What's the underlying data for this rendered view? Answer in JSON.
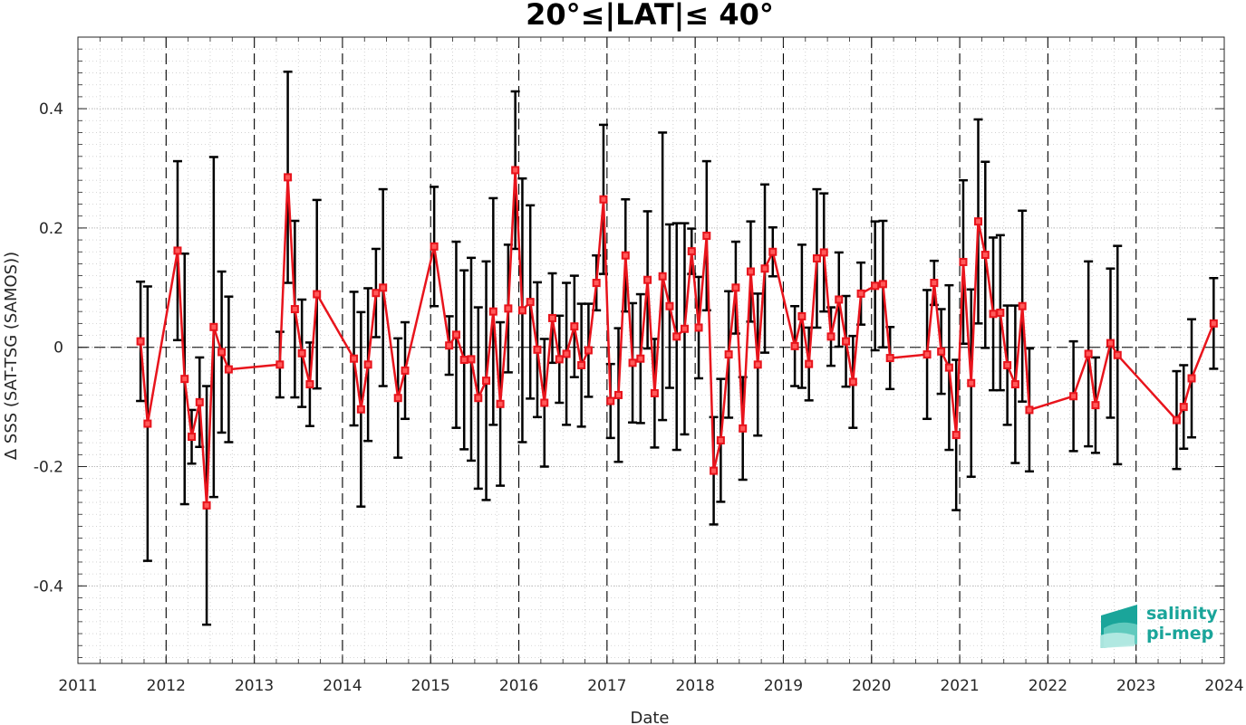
{
  "chart_data": {
    "type": "line",
    "title": "20°≤|LAT|≤ 40°",
    "xlabel": "Date",
    "ylabel": "Δ SSS (SAT-TSG (SAMOS))",
    "xlim": [
      2011,
      2024
    ],
    "ylim": [
      -0.53,
      0.52
    ],
    "x_ticks": [
      "2011",
      "2012",
      "2013",
      "2014",
      "2015",
      "2016",
      "2017",
      "2018",
      "2019",
      "2020",
      "2021",
      "2022",
      "2023",
      "2024"
    ],
    "y_ticks": [
      {
        "value": -0.4,
        "label": "-0.4"
      },
      {
        "value": -0.2,
        "label": "-0.2"
      },
      {
        "value": 0,
        "label": "0"
      },
      {
        "value": 0.2,
        "label": "0.2"
      },
      {
        "value": 0.4,
        "label": "0.4"
      }
    ],
    "grid": true,
    "year_separator_lines": true,
    "zero_reference_line": true,
    "series": [
      {
        "color": "#e8141c",
        "errorbar_color": "#000000",
        "points": [
          {
            "x": 2011.71,
            "y": 0.01,
            "err": 0.1
          },
          {
            "x": 2011.79,
            "y": -0.128,
            "err": 0.23
          },
          {
            "x": 2012.13,
            "y": 0.162,
            "err": 0.15
          },
          {
            "x": 2012.21,
            "y": -0.053,
            "err": 0.21
          },
          {
            "x": 2012.29,
            "y": -0.15,
            "err": 0.045
          },
          {
            "x": 2012.38,
            "y": -0.092,
            "err": 0.075
          },
          {
            "x": 2012.46,
            "y": -0.265,
            "err": 0.2
          },
          {
            "x": 2012.54,
            "y": 0.034,
            "err": 0.285
          },
          {
            "x": 2012.63,
            "y": -0.008,
            "err": 0.135
          },
          {
            "x": 2012.71,
            "y": -0.037,
            "err": 0.122
          },
          {
            "x": 2013.29,
            "y": -0.029,
            "err": 0.055
          },
          {
            "x": 2013.38,
            "y": 0.285,
            "err": 0.177
          },
          {
            "x": 2013.46,
            "y": 0.064,
            "err": 0.148
          },
          {
            "x": 2013.54,
            "y": -0.01,
            "err": 0.09
          },
          {
            "x": 2013.63,
            "y": -0.062,
            "err": 0.07
          },
          {
            "x": 2013.71,
            "y": 0.089,
            "err": 0.158
          },
          {
            "x": 2014.13,
            "y": -0.019,
            "err": 0.112
          },
          {
            "x": 2014.21,
            "y": -0.104,
            "err": 0.163
          },
          {
            "x": 2014.29,
            "y": -0.029,
            "err": 0.128
          },
          {
            "x": 2014.38,
            "y": 0.091,
            "err": 0.074
          },
          {
            "x": 2014.46,
            "y": 0.1,
            "err": 0.165
          },
          {
            "x": 2014.63,
            "y": -0.085,
            "err": 0.1
          },
          {
            "x": 2014.71,
            "y": -0.039,
            "err": 0.081
          },
          {
            "x": 2015.04,
            "y": 0.169,
            "err": 0.1
          },
          {
            "x": 2015.21,
            "y": 0.003,
            "err": 0.049
          },
          {
            "x": 2015.29,
            "y": 0.021,
            "err": 0.156
          },
          {
            "x": 2015.38,
            "y": -0.021,
            "err": 0.15
          },
          {
            "x": 2015.46,
            "y": -0.02,
            "err": 0.17
          },
          {
            "x": 2015.54,
            "y": -0.085,
            "err": 0.152
          },
          {
            "x": 2015.63,
            "y": -0.056,
            "err": 0.2
          },
          {
            "x": 2015.71,
            "y": 0.06,
            "err": 0.19
          },
          {
            "x": 2015.79,
            "y": -0.095,
            "err": 0.137
          },
          {
            "x": 2015.88,
            "y": 0.065,
            "err": 0.107
          },
          {
            "x": 2015.96,
            "y": 0.297,
            "err": 0.132
          },
          {
            "x": 2016.04,
            "y": 0.062,
            "err": 0.221
          },
          {
            "x": 2016.13,
            "y": 0.076,
            "err": 0.162
          },
          {
            "x": 2016.21,
            "y": -0.004,
            "err": 0.113
          },
          {
            "x": 2016.29,
            "y": -0.093,
            "err": 0.107
          },
          {
            "x": 2016.38,
            "y": 0.049,
            "err": 0.075
          },
          {
            "x": 2016.46,
            "y": -0.02,
            "err": 0.073
          },
          {
            "x": 2016.54,
            "y": -0.011,
            "err": 0.119
          },
          {
            "x": 2016.63,
            "y": 0.035,
            "err": 0.085
          },
          {
            "x": 2016.71,
            "y": -0.03,
            "err": 0.103
          },
          {
            "x": 2016.79,
            "y": -0.005,
            "err": 0.078
          },
          {
            "x": 2016.88,
            "y": 0.108,
            "err": 0.046
          },
          {
            "x": 2016.96,
            "y": 0.248,
            "err": 0.125
          },
          {
            "x": 2017.04,
            "y": -0.09,
            "err": 0.062
          },
          {
            "x": 2017.13,
            "y": -0.08,
            "err": 0.112
          },
          {
            "x": 2017.21,
            "y": 0.154,
            "err": 0.094
          },
          {
            "x": 2017.29,
            "y": -0.026,
            "err": 0.1
          },
          {
            "x": 2017.38,
            "y": -0.019,
            "err": 0.108
          },
          {
            "x": 2017.46,
            "y": 0.113,
            "err": 0.115
          },
          {
            "x": 2017.54,
            "y": -0.077,
            "err": 0.091
          },
          {
            "x": 2017.63,
            "y": 0.119,
            "err": 0.241
          },
          {
            "x": 2017.71,
            "y": 0.069,
            "err": 0.137
          },
          {
            "x": 2017.79,
            "y": 0.018,
            "err": 0.19
          },
          {
            "x": 2017.88,
            "y": 0.031,
            "err": 0.177
          },
          {
            "x": 2017.96,
            "y": 0.161,
            "err": 0.038
          },
          {
            "x": 2018.04,
            "y": 0.033,
            "err": 0.085
          },
          {
            "x": 2018.13,
            "y": 0.187,
            "err": 0.125
          },
          {
            "x": 2018.21,
            "y": -0.207,
            "err": 0.09
          },
          {
            "x": 2018.29,
            "y": -0.156,
            "err": 0.103
          },
          {
            "x": 2018.38,
            "y": -0.012,
            "err": 0.106
          },
          {
            "x": 2018.46,
            "y": 0.1,
            "err": 0.077
          },
          {
            "x": 2018.54,
            "y": -0.136,
            "err": 0.086
          },
          {
            "x": 2018.63,
            "y": 0.127,
            "err": 0.084
          },
          {
            "x": 2018.71,
            "y": -0.029,
            "err": 0.119
          },
          {
            "x": 2018.79,
            "y": 0.132,
            "err": 0.141
          },
          {
            "x": 2018.88,
            "y": 0.16,
            "err": 0.041
          },
          {
            "x": 2019.13,
            "y": 0.002,
            "err": 0.067
          },
          {
            "x": 2019.21,
            "y": 0.052,
            "err": 0.12
          },
          {
            "x": 2019.29,
            "y": -0.028,
            "err": 0.061
          },
          {
            "x": 2019.38,
            "y": 0.149,
            "err": 0.116
          },
          {
            "x": 2019.46,
            "y": 0.159,
            "err": 0.099
          },
          {
            "x": 2019.54,
            "y": 0.018,
            "err": 0.049
          },
          {
            "x": 2019.63,
            "y": 0.08,
            "err": 0.079
          },
          {
            "x": 2019.71,
            "y": 0.01,
            "err": 0.076
          },
          {
            "x": 2019.79,
            "y": -0.058,
            "err": 0.077
          },
          {
            "x": 2019.88,
            "y": 0.09,
            "err": 0.052
          },
          {
            "x": 2020.04,
            "y": 0.103,
            "err": 0.108
          },
          {
            "x": 2020.13,
            "y": 0.106,
            "err": 0.106
          },
          {
            "x": 2020.21,
            "y": -0.018,
            "err": 0.052
          },
          {
            "x": 2020.63,
            "y": -0.012,
            "err": 0.108
          },
          {
            "x": 2020.71,
            "y": 0.108,
            "err": 0.037
          },
          {
            "x": 2020.79,
            "y": -0.007,
            "err": 0.071
          },
          {
            "x": 2020.88,
            "y": -0.034,
            "err": 0.138
          },
          {
            "x": 2020.96,
            "y": -0.147,
            "err": 0.126
          },
          {
            "x": 2021.04,
            "y": 0.143,
            "err": 0.137
          },
          {
            "x": 2021.13,
            "y": -0.06,
            "err": 0.157
          },
          {
            "x": 2021.21,
            "y": 0.211,
            "err": 0.171
          },
          {
            "x": 2021.29,
            "y": 0.155,
            "err": 0.156
          },
          {
            "x": 2021.38,
            "y": 0.056,
            "err": 0.128
          },
          {
            "x": 2021.46,
            "y": 0.058,
            "err": 0.13
          },
          {
            "x": 2021.54,
            "y": -0.03,
            "err": 0.1
          },
          {
            "x": 2021.63,
            "y": -0.062,
            "err": 0.132
          },
          {
            "x": 2021.71,
            "y": 0.069,
            "err": 0.16
          },
          {
            "x": 2021.79,
            "y": -0.105,
            "err": 0.103
          },
          {
            "x": 2022.29,
            "y": -0.082,
            "err": 0.092
          },
          {
            "x": 2022.46,
            "y": -0.011,
            "err": 0.155
          },
          {
            "x": 2022.54,
            "y": -0.097,
            "err": 0.08
          },
          {
            "x": 2022.71,
            "y": 0.007,
            "err": 0.125
          },
          {
            "x": 2022.79,
            "y": -0.013,
            "err": 0.183
          },
          {
            "x": 2023.46,
            "y": -0.122,
            "err": 0.082
          },
          {
            "x": 2023.54,
            "y": -0.1,
            "err": 0.07
          },
          {
            "x": 2023.63,
            "y": -0.052,
            "err": 0.099
          },
          {
            "x": 2023.88,
            "y": 0.04,
            "err": 0.076
          }
        ]
      }
    ]
  },
  "logo": {
    "line1": "salinity",
    "line2": "pi-mep",
    "color": "#1aa59a"
  }
}
